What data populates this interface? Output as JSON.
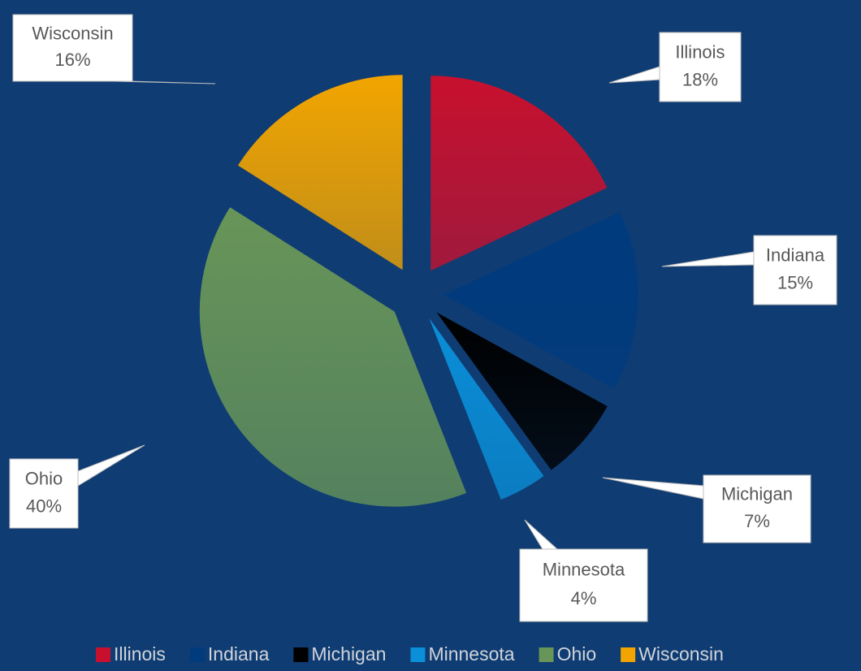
{
  "chart_data": {
    "type": "pie",
    "categories": [
      "Illinois",
      "Indiana",
      "Michigan",
      "Minnesota",
      "Ohio",
      "Wisconsin"
    ],
    "values": [
      18,
      15,
      7,
      4,
      40,
      16
    ],
    "value_labels": [
      "18%",
      "15%",
      "7%",
      "4%",
      "40%",
      "16%"
    ],
    "colors": [
      "#c8102e",
      "#003b7e",
      "#000000",
      "#0a8fd8",
      "#689558",
      "#f2a500"
    ],
    "legend": "bottom"
  }
}
